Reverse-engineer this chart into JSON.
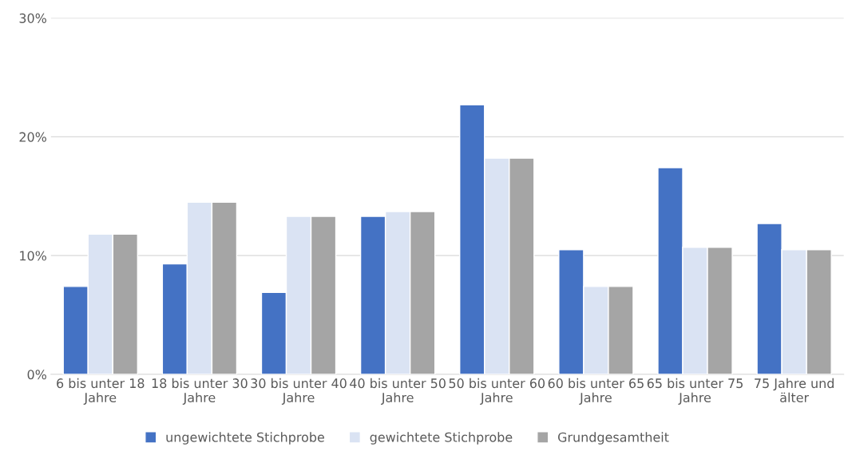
{
  "chart_data": {
    "type": "bar",
    "categories": [
      "6 bis unter 18 Jahre",
      "18 bis unter 30 Jahre",
      "30 bis unter 40 Jahre",
      "40 bis unter 50 Jahre",
      "50 bis unter 60 Jahre",
      "60 bis unter 65 Jahre",
      "65 bis unter 75 Jahre",
      "75 Jahre und älter"
    ],
    "series": [
      {
        "name": "ungewichtete Stichprobe",
        "color": "#4472c4",
        "values": [
          7.4,
          9.3,
          6.9,
          13.3,
          22.7,
          10.5,
          17.4,
          12.7
        ]
      },
      {
        "name": "gewichtete Stichprobe",
        "color": "#dae3f3",
        "values": [
          11.8,
          14.5,
          13.3,
          13.7,
          18.2,
          7.4,
          10.7,
          10.5
        ]
      },
      {
        "name": "Grundgesamtheit",
        "color": "#a5a5a5",
        "values": [
          11.8,
          14.5,
          13.3,
          13.7,
          18.2,
          7.4,
          10.7,
          10.5
        ]
      }
    ],
    "ylim": [
      0,
      30
    ],
    "yticks": [
      {
        "value": 0,
        "label": "0%"
      },
      {
        "value": 10,
        "label": "10%"
      },
      {
        "value": 20,
        "label": "20%"
      },
      {
        "value": 30,
        "label": "30%"
      }
    ],
    "grid": "y",
    "legend": "bottom"
  }
}
